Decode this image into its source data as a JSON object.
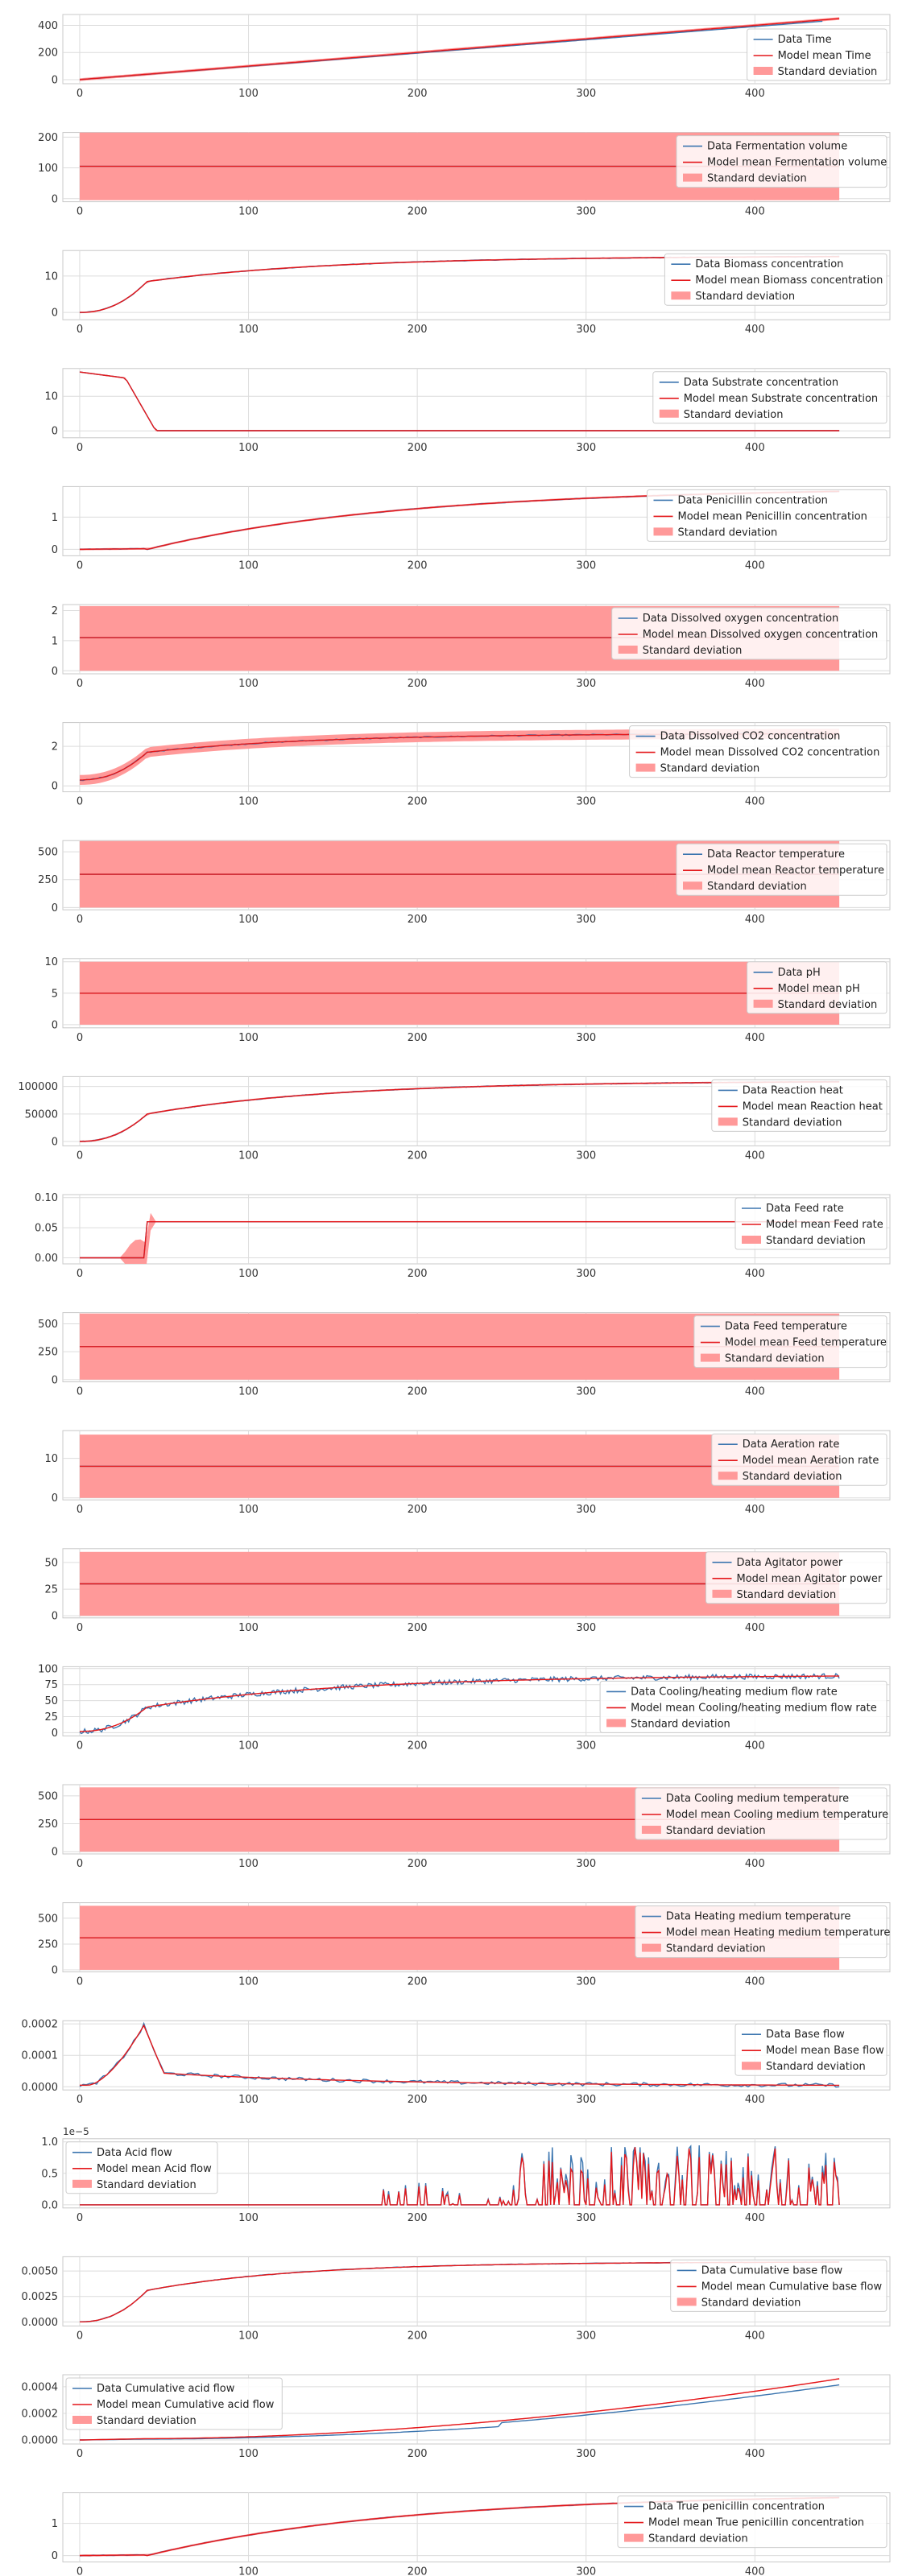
{
  "colors": {
    "data_line": "#3b75af",
    "model_line": "#e4171a",
    "std_fill": "#ff9999",
    "grid": "#dcdcdc",
    "frame": "#c8c8c8",
    "tick_text": "#333333"
  },
  "chart_data": [
    {
      "type": "line",
      "name": "Time",
      "legend": [
        "Data Time",
        "Model mean Time",
        "Standard deviation"
      ],
      "legend_loc": "lower-right",
      "xlim": [
        -10,
        480
      ],
      "ylim": [
        -30,
        480
      ],
      "yticks": [
        "0",
        "200",
        "400"
      ],
      "ytick_values": [
        0,
        200,
        400
      ],
      "xticks": [
        "0",
        "100",
        "200",
        "300",
        "400"
      ],
      "xtick_values": [
        0,
        100,
        200,
        300,
        400
      ],
      "shape": "time",
      "data_end": 440,
      "model_end": 450,
      "std_half": 10
    },
    {
      "type": "line",
      "name": "Fermentation volume",
      "legend": [
        "Data Fermentation volume",
        "Model mean Fermentation volume",
        "Standard deviation"
      ],
      "legend_loc": "top-right",
      "xlim": [
        -10,
        480
      ],
      "ylim": [
        -10,
        215
      ],
      "yticks": [
        "0",
        "100",
        "200"
      ],
      "ytick_values": [
        0,
        100,
        200
      ],
      "xticks": [
        "0",
        "100",
        "200",
        "300",
        "400"
      ],
      "xtick_values": [
        0,
        100,
        200,
        300,
        400
      ],
      "shape": "const",
      "level": 105,
      "std_band": [
        -5,
        215
      ]
    },
    {
      "type": "line",
      "name": "Biomass concentration",
      "legend": [
        "Data Biomass concentration",
        "Model mean Biomass concentration",
        "Standard deviation"
      ],
      "legend_loc": "top-right",
      "xlim": [
        -10,
        480
      ],
      "ylim": [
        -2,
        17
      ],
      "yticks": [
        "0",
        "10"
      ],
      "ytick_values": [
        0,
        10
      ],
      "xticks": [
        "0",
        "100",
        "200",
        "300",
        "400"
      ],
      "xtick_values": [
        0,
        100,
        200,
        300,
        400
      ],
      "shape": "growth",
      "start": 0,
      "mid": 8.5,
      "final": 15.5,
      "rate": 110,
      "noise": 0.1,
      "std_half": 0.2
    },
    {
      "type": "line",
      "name": "Substrate concentration",
      "legend": [
        "Data Substrate concentration",
        "Model mean Substrate concentration",
        "Standard deviation"
      ],
      "legend_loc": "top-right",
      "xlim": [
        -10,
        480
      ],
      "ylim": [
        -2,
        18
      ],
      "yticks": [
        "0",
        "10"
      ],
      "ytick_values": [
        0,
        10
      ],
      "xticks": [
        "0",
        "100",
        "200",
        "300",
        "400"
      ],
      "xtick_values": [
        0,
        100,
        200,
        300,
        400
      ],
      "shape": "decay",
      "start": 17,
      "std_half": 0.2
    },
    {
      "type": "line",
      "name": "Penicillin concentration",
      "legend": [
        "Data Penicillin concentration",
        "Model mean Penicillin concentration",
        "Standard deviation"
      ],
      "legend_loc": "top-right",
      "xlim": [
        -10,
        480
      ],
      "ylim": [
        -0.2,
        1.95
      ],
      "yticks": [
        "0",
        "1"
      ],
      "ytick_values": [
        0,
        1
      ],
      "xticks": [
        "0",
        "100",
        "200",
        "300",
        "400"
      ],
      "xtick_values": [
        0,
        100,
        200,
        300,
        400
      ],
      "shape": "rise",
      "start": 0,
      "final": 1.8,
      "onset": 40,
      "rate": 150,
      "noise": 0.01,
      "std_half": 0.03
    },
    {
      "type": "line",
      "name": "Dissolved oxygen concentration",
      "legend": [
        "Data Dissolved oxygen concentration",
        "Model mean Dissolved oxygen concentration",
        "Standard deviation"
      ],
      "legend_loc": "top-right",
      "xlim": [
        -10,
        480
      ],
      "ylim": [
        -0.1,
        2.2
      ],
      "yticks": [
        "0",
        "1",
        "2"
      ],
      "ytick_values": [
        0,
        1,
        2
      ],
      "xticks": [
        "0",
        "100",
        "200",
        "300",
        "400"
      ],
      "xtick_values": [
        0,
        100,
        200,
        300,
        400
      ],
      "shape": "const",
      "level": 1.1,
      "std_band": [
        0,
        2.15
      ]
    },
    {
      "type": "line",
      "name": "Dissolved CO2 concentration",
      "legend": [
        "Data Dissolved CO2 concentration",
        "Model mean Dissolved CO2 concentration",
        "Standard deviation"
      ],
      "legend_loc": "top-right",
      "xlim": [
        -10,
        480
      ],
      "ylim": [
        -0.3,
        3.2
      ],
      "yticks": [
        "0",
        "2"
      ],
      "ytick_values": [
        0,
        2
      ],
      "xticks": [
        "0",
        "100",
        "200",
        "300",
        "400"
      ],
      "xtick_values": [
        0,
        100,
        200,
        300,
        400
      ],
      "shape": "growth",
      "start": 0.3,
      "mid": 1.7,
      "final": 2.65,
      "rate": 100,
      "noise": 0.03,
      "std_half": 0.25
    },
    {
      "type": "line",
      "name": "Reactor temperature",
      "legend": [
        "Data Reactor temperature",
        "Model mean Reactor temperature",
        "Standard deviation"
      ],
      "legend_loc": "top-right",
      "xlim": [
        -10,
        480
      ],
      "ylim": [
        -20,
        600
      ],
      "yticks": [
        "0",
        "250",
        "500"
      ],
      "ytick_values": [
        0,
        250,
        500
      ],
      "xticks": [
        "0",
        "100",
        "200",
        "300",
        "400"
      ],
      "xtick_values": [
        0,
        100,
        200,
        300,
        400
      ],
      "shape": "const",
      "level": 298,
      "std_band": [
        0,
        596
      ]
    },
    {
      "type": "line",
      "name": "pH",
      "legend": [
        "Data pH",
        "Model mean pH",
        "Standard deviation"
      ],
      "legend_loc": "top-right",
      "xlim": [
        -10,
        480
      ],
      "ylim": [
        -0.5,
        10.5
      ],
      "yticks": [
        "0",
        "5",
        "10"
      ],
      "ytick_values": [
        0,
        5,
        10
      ],
      "xticks": [
        "0",
        "100",
        "200",
        "300",
        "400"
      ],
      "xtick_values": [
        0,
        100,
        200,
        300,
        400
      ],
      "shape": "const",
      "level": 5,
      "std_band": [
        0,
        10
      ]
    },
    {
      "type": "line",
      "name": "Reaction heat",
      "legend": [
        "Data Reaction heat",
        "Model mean Reaction heat",
        "Standard deviation"
      ],
      "legend_loc": "top-right",
      "xlim": [
        -10,
        480
      ],
      "ylim": [
        -8000,
        118000
      ],
      "yticks": [
        "0",
        "50000",
        "100000"
      ],
      "ytick_values": [
        0,
        50000,
        100000
      ],
      "xticks": [
        "0",
        "100",
        "200",
        "300",
        "400"
      ],
      "xtick_values": [
        0,
        100,
        200,
        300,
        400
      ],
      "shape": "growth",
      "start": 0,
      "mid": 50000,
      "final": 110000,
      "rate": 110,
      "noise": 600,
      "std_half": 1500
    },
    {
      "type": "line",
      "name": "Feed rate",
      "legend": [
        "Data Feed rate",
        "Model mean Feed rate",
        "Standard deviation"
      ],
      "legend_loc": "top-right",
      "xlim": [
        -10,
        480
      ],
      "ylim": [
        -0.01,
        0.105
      ],
      "yticks": [
        "0.00",
        "0.05",
        "0.10"
      ],
      "ytick_values": [
        0,
        0.05,
        0.1
      ],
      "xticks": [
        "0",
        "100",
        "200",
        "300",
        "400"
      ],
      "xtick_values": [
        0,
        100,
        200,
        300,
        400
      ],
      "shape": "step",
      "low": 0,
      "high": 0.06,
      "step_at": 40,
      "std_half": 0.001
    },
    {
      "type": "line",
      "name": "Feed temperature",
      "legend": [
        "Data Feed temperature",
        "Model mean Feed temperature",
        "Standard deviation"
      ],
      "legend_loc": "top-right",
      "xlim": [
        -10,
        480
      ],
      "ylim": [
        -20,
        600
      ],
      "yticks": [
        "0",
        "250",
        "500"
      ],
      "ytick_values": [
        0,
        250,
        500
      ],
      "xticks": [
        "0",
        "100",
        "200",
        "300",
        "400"
      ],
      "xtick_values": [
        0,
        100,
        200,
        300,
        400
      ],
      "shape": "const",
      "level": 296,
      "std_band": [
        0,
        592
      ]
    },
    {
      "type": "line",
      "name": "Aeration rate",
      "legend": [
        "Data Aeration rate",
        "Model mean Aeration rate",
        "Standard deviation"
      ],
      "legend_loc": "top-right",
      "xlim": [
        -10,
        480
      ],
      "ylim": [
        -0.5,
        17
      ],
      "yticks": [
        "0",
        "10"
      ],
      "ytick_values": [
        0,
        10
      ],
      "xticks": [
        "0",
        "100",
        "200",
        "300",
        "400"
      ],
      "xtick_values": [
        0,
        100,
        200,
        300,
        400
      ],
      "shape": "const",
      "level": 8,
      "std_band": [
        0,
        16
      ]
    },
    {
      "type": "line",
      "name": "Agitator power",
      "legend": [
        "Data Agitator power",
        "Model mean Agitator power",
        "Standard deviation"
      ],
      "legend_loc": "top-right",
      "xlim": [
        -10,
        480
      ],
      "ylim": [
        -2,
        63
      ],
      "yticks": [
        "0",
        "25",
        "50"
      ],
      "ytick_values": [
        0,
        25,
        50
      ],
      "xticks": [
        "0",
        "100",
        "200",
        "300",
        "400"
      ],
      "xtick_values": [
        0,
        100,
        200,
        300,
        400
      ],
      "shape": "const",
      "level": 30,
      "std_band": [
        0,
        60
      ]
    },
    {
      "type": "line",
      "name": "Cooling/heating medium flow rate",
      "legend": [
        "Data Cooling/heating medium flow rate",
        "Model mean Cooling/heating medium flow rate",
        "Standard deviation"
      ],
      "legend_loc": "lower-right",
      "xlim": [
        -10,
        480
      ],
      "ylim": [
        -5,
        103
      ],
      "yticks": [
        "0",
        "25",
        "50",
        "75",
        "100"
      ],
      "ytick_values": [
        0,
        25,
        50,
        75,
        100
      ],
      "xticks": [
        "0",
        "100",
        "200",
        "300",
        "400"
      ],
      "xtick_values": [
        0,
        100,
        200,
        300,
        400
      ],
      "shape": "growth",
      "start": 2,
      "mid": 40,
      "final": 90,
      "rate": 120,
      "noise": 4,
      "std_half": 0.5
    },
    {
      "type": "line",
      "name": "Cooling medium temperature",
      "legend": [
        "Data Cooling medium temperature",
        "Model mean Cooling medium temperature",
        "Standard deviation"
      ],
      "legend_loc": "top-right",
      "xlim": [
        -10,
        480
      ],
      "ylim": [
        -20,
        600
      ],
      "yticks": [
        "0",
        "250",
        "500"
      ],
      "ytick_values": [
        0,
        250,
        500
      ],
      "xticks": [
        "0",
        "100",
        "200",
        "300",
        "400"
      ],
      "xtick_values": [
        0,
        100,
        200,
        300,
        400
      ],
      "shape": "const",
      "level": 288,
      "std_band": [
        0,
        576
      ]
    },
    {
      "type": "line",
      "name": "Heating medium temperature",
      "legend": [
        "Data Heating medium temperature",
        "Model mean Heating medium temperature",
        "Standard deviation"
      ],
      "legend_loc": "top-right",
      "xlim": [
        -10,
        480
      ],
      "ylim": [
        -20,
        650
      ],
      "yticks": [
        "0",
        "250",
        "500"
      ],
      "ytick_values": [
        0,
        250,
        500
      ],
      "xticks": [
        "0",
        "100",
        "200",
        "300",
        "400"
      ],
      "xtick_values": [
        0,
        100,
        200,
        300,
        400
      ],
      "shape": "const",
      "level": 310,
      "std_band": [
        0,
        620
      ]
    },
    {
      "type": "line",
      "name": "Base flow",
      "legend": [
        "Data Base flow",
        "Model mean Base flow",
        "Standard deviation"
      ],
      "legend_loc": "top-right",
      "xlim": [
        -10,
        480
      ],
      "ylim": [
        -1e-05,
        0.00021
      ],
      "yticks": [
        "0.0000",
        "0.0001",
        "0.0002"
      ],
      "ytick_values": [
        0,
        0.0001,
        0.0002
      ],
      "xticks": [
        "0",
        "100",
        "200",
        "300",
        "400"
      ],
      "xtick_values": [
        0,
        100,
        200,
        300,
        400
      ],
      "shape": "peak",
      "peak": 0.000195,
      "peak_at": 38,
      "after": 4e-05,
      "noise": 6e-06
    },
    {
      "type": "line",
      "name": "Acid flow",
      "legend": [
        "Data Acid flow",
        "Model mean Acid flow",
        "Standard deviation"
      ],
      "legend_loc": "top-left",
      "offset_label": "1e−5",
      "xlim": [
        -10,
        480
      ],
      "ylim": [
        -0.05,
        1.05
      ],
      "yticks": [
        "0.0",
        "0.5",
        "1.0"
      ],
      "ytick_values": [
        0,
        0.5,
        1
      ],
      "xticks": [
        "0",
        "100",
        "200",
        "300",
        "400"
      ],
      "xtick_values": [
        0,
        100,
        200,
        300,
        400
      ],
      "shape": "spikes",
      "spike_start": 175,
      "dense_start": 250
    },
    {
      "type": "line",
      "name": "Cumulative base flow",
      "legend": [
        "Data Cumulative base flow",
        "Model mean Cumulative base flow",
        "Standard deviation"
      ],
      "legend_loc": "top-right",
      "xlim": [
        -10,
        480
      ],
      "ylim": [
        -0.0004,
        0.0064
      ],
      "yticks": [
        "0.0000",
        "0.0025",
        "0.0050"
      ],
      "ytick_values": [
        0,
        0.0025,
        0.005
      ],
      "xticks": [
        "0",
        "100",
        "200",
        "300",
        "400"
      ],
      "xtick_values": [
        0,
        100,
        200,
        300,
        400
      ],
      "shape": "growth",
      "start": 0,
      "mid": 0.0031,
      "final": 0.0059,
      "rate": 90,
      "noise": 3e-05,
      "std_half": 5e-05
    },
    {
      "type": "line",
      "name": "Cumulative acid flow",
      "legend": [
        "Data Cumulative acid flow",
        "Model mean Cumulative acid flow",
        "Standard deviation"
      ],
      "legend_loc": "top-left",
      "xlim": [
        -10,
        480
      ],
      "ylim": [
        -3e-05,
        0.00049
      ],
      "yticks": [
        "0.0000",
        "0.0002",
        "0.0004"
      ],
      "ytick_values": [
        0,
        0.0002,
        0.0004
      ],
      "xticks": [
        "0",
        "100",
        "200",
        "300",
        "400"
      ],
      "xtick_values": [
        0,
        100,
        200,
        300,
        400
      ],
      "shape": "convex",
      "final": 0.00046,
      "std_half": 4e-06
    },
    {
      "type": "line",
      "name": "True penicillin concentration",
      "legend": [
        "Data True penicillin concentration",
        "Model mean True penicillin concentration",
        "Standard deviation"
      ],
      "legend_loc": "top-right",
      "xlim": [
        -10,
        480
      ],
      "ylim": [
        -0.2,
        1.95
      ],
      "yticks": [
        "0",
        "1"
      ],
      "ytick_values": [
        0,
        1
      ],
      "xticks": [
        "0",
        "100",
        "200",
        "300",
        "400"
      ],
      "xtick_values": [
        0,
        100,
        200,
        300,
        400
      ],
      "shape": "rise",
      "start": 0,
      "final": 1.8,
      "onset": 40,
      "rate": 150,
      "noise": 0.01,
      "std_half": 0.03
    }
  ]
}
